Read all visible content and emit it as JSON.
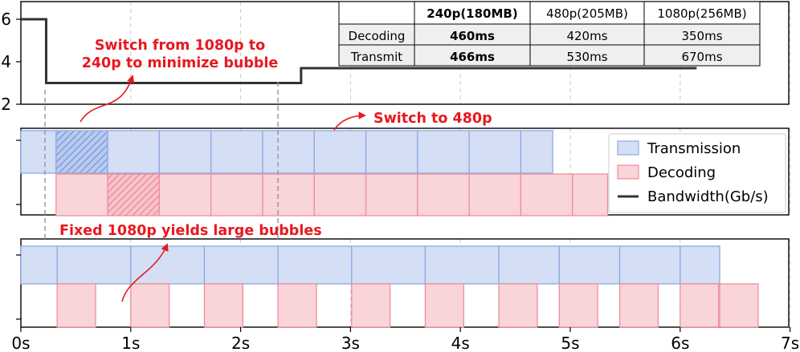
{
  "colors": {
    "transmission_fill": "#d4dff5",
    "transmission_edge": "#8ea8e3",
    "decoding_fill": "#f9d4d9",
    "decoding_edge": "#ef8e9b",
    "bandwidth_line": "#333333",
    "annotation": "#e8181e",
    "grid": "#c8c8c8"
  },
  "table": {
    "header": [
      "",
      "240p(180MB)",
      "480p(205MB)",
      "1080p(256MB)"
    ],
    "rows": [
      [
        "Decoding",
        "460ms",
        "420ms",
        "350ms"
      ],
      [
        "Transmit",
        "466ms",
        "530ms",
        "670ms"
      ]
    ]
  },
  "annotations": {
    "switch_240_line1": "Switch from 1080p to",
    "switch_240_line2": "240p to minimize bubble",
    "switch_480": "Switch to 480p",
    "fixed_1080": "Fixed 1080p yields large bubbles"
  },
  "chart_data": {
    "type": "timeline",
    "x_axis": {
      "range": [
        0,
        7.1
      ],
      "ticks": [
        0,
        1,
        2,
        3,
        4,
        5,
        6,
        7
      ],
      "tick_labels": [
        "0s",
        "1s",
        "2s",
        "3s",
        "4s",
        "5s",
        "6s",
        "7s"
      ]
    },
    "bandwidth_panel": {
      "y_range": [
        2,
        6.6
      ],
      "y_ticks": [
        2,
        4,
        6
      ],
      "y_tick_labels": [
        "2",
        "4",
        "6"
      ],
      "series_name": "Bandwidth(Gb/s)",
      "steps": [
        [
          0,
          6
        ],
        [
          0.23,
          6
        ],
        [
          0.23,
          3
        ],
        [
          2.55,
          3
        ],
        [
          2.55,
          3.7
        ],
        [
          6.15,
          3.7
        ]
      ]
    },
    "adaptive_panel": {
      "transmission": [
        [
          0,
          0.32
        ],
        [
          0.32,
          0.79
        ],
        [
          0.79,
          1.26
        ],
        [
          1.26,
          1.73
        ],
        [
          1.73,
          2.2
        ],
        [
          2.2,
          2.67
        ],
        [
          2.67,
          3.14
        ],
        [
          3.14,
          3.61
        ],
        [
          3.61,
          4.08
        ],
        [
          4.08,
          4.55
        ],
        [
          4.55,
          4.84
        ]
      ],
      "transmission_hatched": [
        0.32,
        0.79
      ],
      "decoding": [
        [
          0.32,
          0.79
        ],
        [
          0.79,
          1.26
        ],
        [
          1.26,
          1.73
        ],
        [
          1.73,
          2.2
        ],
        [
          2.2,
          2.67
        ],
        [
          2.67,
          3.14
        ],
        [
          3.14,
          3.61
        ],
        [
          3.61,
          4.08
        ],
        [
          4.08,
          4.55
        ],
        [
          4.55,
          5.02
        ],
        [
          5.02,
          5.34
        ]
      ],
      "decoding_hatched": [
        0.79,
        1.26
      ]
    },
    "fixed_panel": {
      "transmission": [
        [
          0,
          0.33
        ],
        [
          0.33,
          1.0
        ],
        [
          1.0,
          1.67
        ],
        [
          1.67,
          2.34
        ],
        [
          2.34,
          3.01
        ],
        [
          3.01,
          3.68
        ],
        [
          3.68,
          4.35
        ],
        [
          4.35,
          4.9
        ],
        [
          4.9,
          5.45
        ],
        [
          5.45,
          6.0
        ],
        [
          6.0,
          6.36
        ]
      ],
      "decoding": [
        [
          0.33,
          0.68
        ],
        [
          1.0,
          1.35
        ],
        [
          1.67,
          2.02
        ],
        [
          2.34,
          2.69
        ],
        [
          3.01,
          3.36
        ],
        [
          3.68,
          4.03
        ],
        [
          4.35,
          4.7
        ],
        [
          4.9,
          5.25
        ],
        [
          5.45,
          5.8
        ],
        [
          6.0,
          6.35
        ],
        [
          6.36,
          6.71
        ]
      ]
    },
    "legend": {
      "position": "upper-right of middle panel",
      "entries": [
        "Transmission",
        "Decoding",
        "Bandwidth(Gb/s)"
      ]
    },
    "grid": "vertical dashed at each second"
  }
}
